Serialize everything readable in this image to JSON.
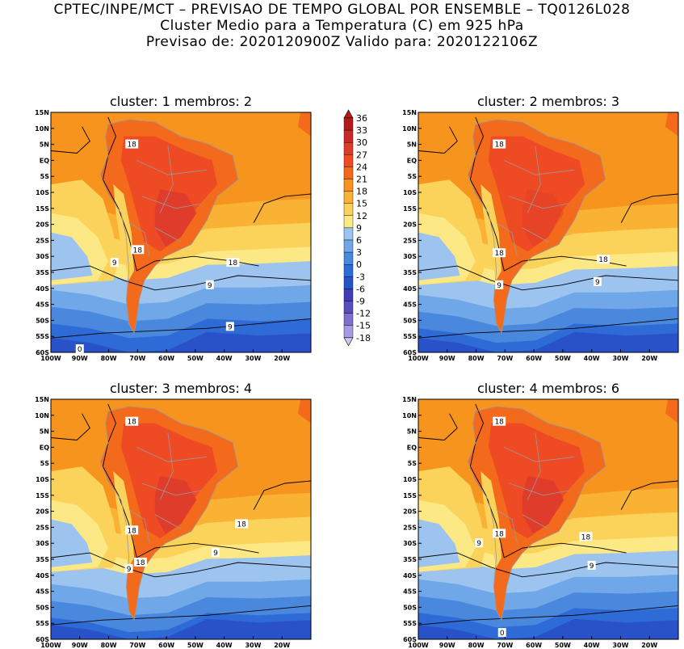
{
  "header": {
    "line1": "CPTEC/INPE/MCT – PREVISAO DE TEMPO GLOBAL POR ENSEMBLE – TQ0126L028",
    "line2": "Cluster Medio para a Temperatura (C) em 925 hPa",
    "line3": "Previsao de: 2020120900Z    Valido para: 2020122106Z"
  },
  "axes": {
    "lat_labels": [
      "15N",
      "10N",
      "5N",
      "EQ",
      "5S",
      "10S",
      "15S",
      "20S",
      "25S",
      "30S",
      "35S",
      "40S",
      "45S",
      "50S",
      "55S",
      "60S"
    ],
    "lon_labels": [
      "100W",
      "90W",
      "80W",
      "70W",
      "60W",
      "50W",
      "40W",
      "30W",
      "20W"
    ]
  },
  "colorbar": {
    "levels": [
      "36",
      "33",
      "30",
      "27",
      "24",
      "21",
      "18",
      "15",
      "12",
      "9",
      "6",
      "3",
      "0",
      "-3",
      "-6",
      "-9",
      "-12",
      "-15",
      "-18"
    ],
    "colors": [
      "#b31b1b",
      "#c8282a",
      "#dd3b2e",
      "#ee4a24",
      "#f36a1c",
      "#f7941d",
      "#f9b233",
      "#fbd35a",
      "#fde886",
      "#9cc4ef",
      "#6fa7e8",
      "#4a88de",
      "#2e6bd6",
      "#2a52c8",
      "#3b3fb8",
      "#5b4cbf",
      "#7f6fcf",
      "#a69be0",
      "#cfc8f0"
    ]
  },
  "panels": [
    {
      "title": "cluster: 1   membros: 2",
      "contour_labels": [
        {
          "text": "18",
          "lon": -72,
          "lat": 5
        },
        {
          "text": "18",
          "lon": -70,
          "lat": -28
        },
        {
          "text": "18",
          "lon": -37,
          "lat": -32
        },
        {
          "text": "9",
          "lon": -78,
          "lat": -32
        },
        {
          "text": "9",
          "lon": -45,
          "lat": -39
        },
        {
          "text": "9",
          "lon": -38,
          "lat": -52
        },
        {
          "text": "0",
          "lon": -90,
          "lat": -59
        }
      ]
    },
    {
      "title": "cluster: 2   membros: 3",
      "contour_labels": [
        {
          "text": "18",
          "lon": -72,
          "lat": 5
        },
        {
          "text": "18",
          "lon": -72,
          "lat": -29
        },
        {
          "text": "18",
          "lon": -36,
          "lat": -31
        },
        {
          "text": "9",
          "lon": -72,
          "lat": -39
        },
        {
          "text": "9",
          "lon": -38,
          "lat": -38
        }
      ]
    },
    {
      "title": "cluster: 3   membros: 4",
      "contour_labels": [
        {
          "text": "18",
          "lon": -72,
          "lat": 8
        },
        {
          "text": "18",
          "lon": -72,
          "lat": -26
        },
        {
          "text": "18",
          "lon": -69,
          "lat": -36
        },
        {
          "text": "18",
          "lon": -34,
          "lat": -24
        },
        {
          "text": "9",
          "lon": -73,
          "lat": -38
        },
        {
          "text": "9",
          "lon": -43,
          "lat": -33
        }
      ]
    },
    {
      "title": "cluster: 4   membros: 6",
      "contour_labels": [
        {
          "text": "18",
          "lon": -72,
          "lat": 8
        },
        {
          "text": "18",
          "lon": -72,
          "lat": -27
        },
        {
          "text": "18",
          "lon": -42,
          "lat": -28
        },
        {
          "text": "9",
          "lon": -79,
          "lat": -30
        },
        {
          "text": "9",
          "lon": -40,
          "lat": -37
        },
        {
          "text": "0",
          "lon": -71,
          "lat": -58
        }
      ]
    }
  ]
}
